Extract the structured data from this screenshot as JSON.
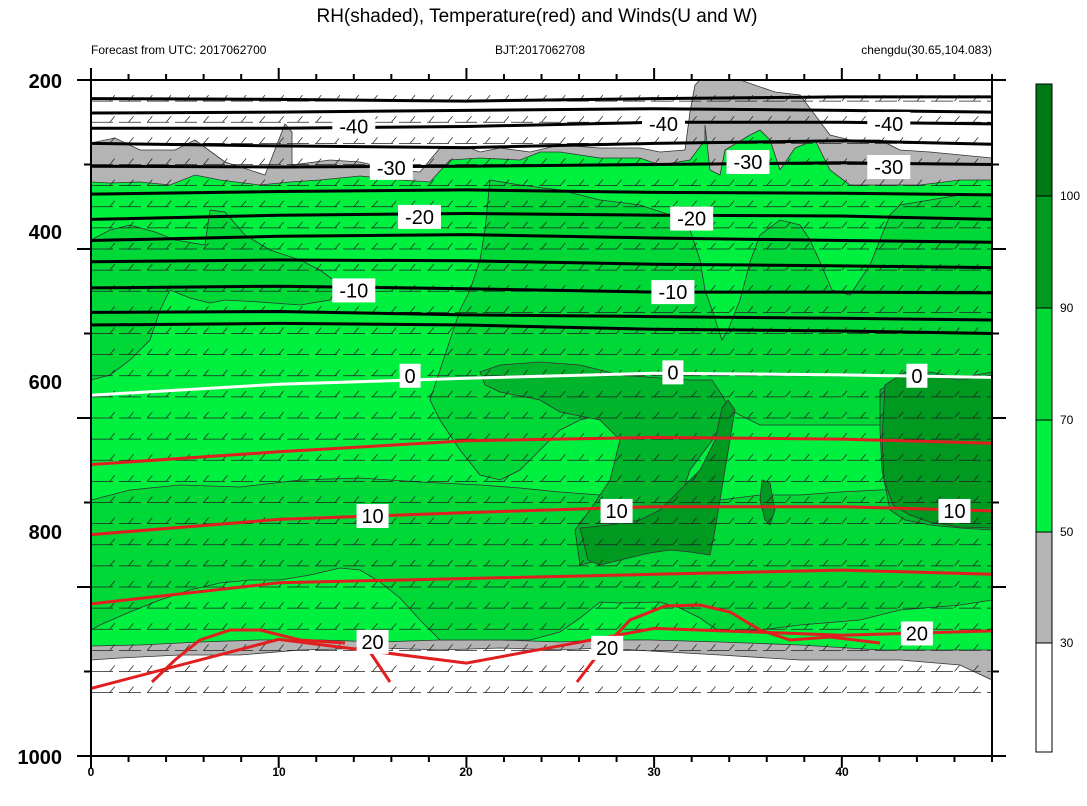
{
  "chart_data": {
    "type": "contour",
    "title": "RH(shaded), Temperature(red) and Winds(U and W)",
    "subtitle_left": "Forecast from UTC: 2017062700",
    "subtitle_center": "BJT:2017062708",
    "subtitle_right": "chengdu(30.65,104.083)",
    "xlim": [
      0,
      48
    ],
    "ylim": [
      1000,
      200
    ],
    "x_ticks": [
      "0",
      "10",
      "20",
      "30",
      "40"
    ],
    "y_ticks": [
      "200",
      "400",
      "600",
      "800",
      "1000"
    ],
    "colorbar": {
      "levels": [
        "30",
        "50",
        "70",
        "90",
        "100"
      ],
      "colors": [
        "#ffffff",
        "#b4b4b4",
        "#00f040",
        "#00d838",
        "#00b42c",
        "#009a20",
        "#007814"
      ]
    },
    "rh_regions": [
      {
        "level": "30-50",
        "color": "#b4b4b4"
      },
      {
        "level": "50-60",
        "color": "#00f040"
      },
      {
        "level": "60-70",
        "color": "#00d838"
      },
      {
        "level": "70-80",
        "color": "#00b42c"
      },
      {
        "level": "80-90",
        "color": "#009a20"
      }
    ],
    "temperature_contours": [
      {
        "value": -40,
        "label": "-40",
        "color": "black",
        "x": [
          0,
          10,
          20,
          30,
          40,
          48
        ],
        "y": [
          257,
          257,
          255,
          250,
          250,
          252
        ]
      },
      {
        "value": -30,
        "label": "-30",
        "color": "black",
        "x": [
          0,
          10,
          20,
          30,
          40,
          48
        ],
        "y": [
          302,
          303,
          302,
          300,
          298,
          300
        ]
      },
      {
        "value": -20,
        "label": "-20",
        "color": "black",
        "x": [
          0,
          10,
          20,
          30,
          40,
          48
        ],
        "y": [
          365,
          360,
          358,
          360,
          361,
          365
        ]
      },
      {
        "value": -10,
        "label": "-10",
        "color": "black",
        "x": [
          0,
          10,
          20,
          30,
          40,
          48
        ],
        "y": [
          446,
          444,
          447,
          451,
          451,
          452
        ]
      },
      {
        "value": 0,
        "label": "0",
        "color": "white",
        "x": [
          0,
          10,
          20,
          30,
          40,
          48
        ],
        "y": [
          573,
          560,
          553,
          547,
          549,
          552
        ]
      },
      {
        "value": 10,
        "label": "10",
        "color": "red",
        "x": [
          0,
          10,
          20,
          30,
          40,
          48
        ],
        "y": [
          738,
          720,
          712,
          705,
          705,
          710
        ]
      },
      {
        "value": 20,
        "label": "20",
        "color": "red",
        "x": [
          0,
          10,
          20,
          30,
          40,
          48
        ],
        "y": [
          920,
          862,
          890,
          849,
          857,
          852
        ]
      }
    ],
    "winds": "U and W barbs on pressure levels every 25 hPa",
    "legend_placement": "right colorbar"
  }
}
